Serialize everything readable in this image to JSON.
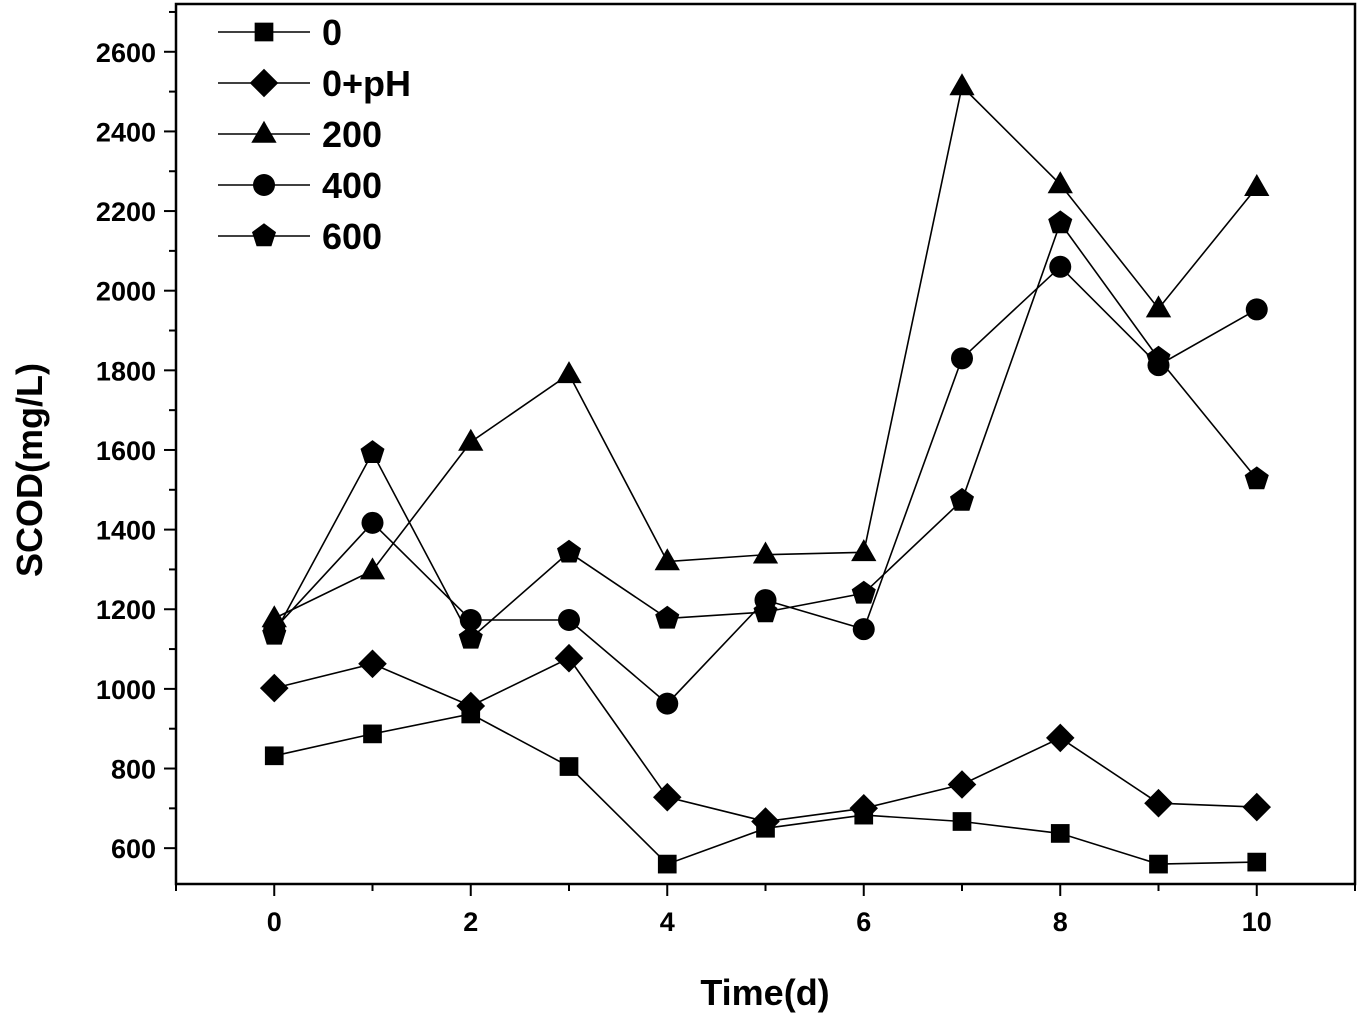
{
  "chart_data": {
    "type": "line",
    "xlabel": "Time(d)",
    "ylabel": "SCOD(mg/L)",
    "xlim": [
      -1,
      11
    ],
    "ylim": [
      510,
      2720
    ],
    "xticks": [
      0,
      2,
      4,
      6,
      8,
      10
    ],
    "yticks": [
      600,
      800,
      1000,
      1200,
      1400,
      1600,
      1800,
      2000,
      2200,
      2400,
      2600
    ],
    "grid": false,
    "legend_position": "top-left",
    "x": [
      0,
      1,
      2,
      3,
      4,
      5,
      6,
      7,
      8,
      9,
      10
    ],
    "series": [
      {
        "name": "0",
        "marker": "square",
        "values": [
          832,
          887,
          937,
          805,
          560,
          650,
          683,
          667,
          637,
          560,
          565
        ]
      },
      {
        "name": "0+pH",
        "marker": "diamond",
        "values": [
          1002,
          1063,
          957,
          1077,
          728,
          667,
          700,
          760,
          877,
          713,
          703
        ]
      },
      {
        "name": "200",
        "marker": "triangle",
        "values": [
          1177,
          1297,
          1620,
          1790,
          1320,
          1337,
          1343,
          2513,
          2267,
          1955,
          2260
        ]
      },
      {
        "name": "400",
        "marker": "circle",
        "values": [
          1150,
          1417,
          1173,
          1173,
          963,
          1223,
          1150,
          1830,
          2060,
          1813,
          1953
        ]
      },
      {
        "name": "600",
        "marker": "pentagon",
        "values": [
          1137,
          1593,
          1127,
          1343,
          1177,
          1193,
          1240,
          1473,
          2170,
          1830,
          1527
        ]
      }
    ]
  }
}
